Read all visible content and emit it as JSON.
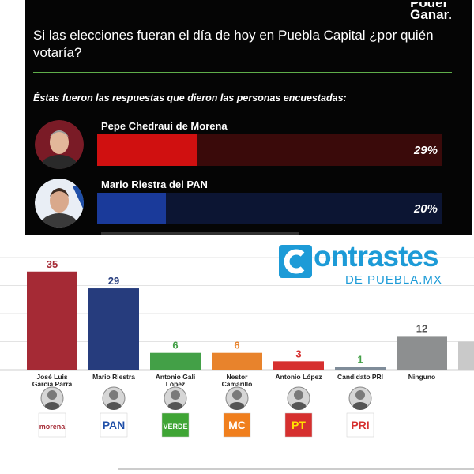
{
  "top": {
    "brand_line1": "Poder",
    "brand_line2": "Ganar.",
    "question": "Si las elecciones fueran el día de hoy en Puebla Capital ¿por quién votaría?",
    "subtitle": "Éstas fueron las respuestas que dieron las personas encuestadas:",
    "candidates": [
      {
        "name": "Pepe Chedraui de Morena",
        "percent_label": "29%",
        "percent": 29,
        "color": "#d01010",
        "track": "#3a0a0a"
      },
      {
        "name": "Mario Riestra del PAN",
        "percent_label": "20%",
        "percent": 20,
        "color": "#1a3a9a",
        "track": "#0c1533"
      }
    ]
  },
  "logo": {
    "title": "ontrastes",
    "initial": "C",
    "subtitle": "DE PUEBLA.MX",
    "color": "#1d9bd7"
  },
  "chart_data": {
    "type": "bar",
    "categories": [
      "José Luis García Parra",
      "Mario Riestra",
      "Antonio Gali López",
      "Nestor Camarillo",
      "Antonio López",
      "Candidato PRI",
      "Ninguno",
      ""
    ],
    "values": [
      35,
      29,
      6,
      6,
      3,
      1,
      12,
      10
    ],
    "value_labels": [
      "35",
      "29",
      "6",
      "6",
      "3",
      "1",
      "12",
      ""
    ],
    "colors": [
      "#a52a35",
      "#263c7d",
      "#43a047",
      "#e8832c",
      "#d6302f",
      "#7f8c99",
      "#8d8f90",
      "#c9c9c9"
    ],
    "label_colors": [
      "#a52a35",
      "#263c7d",
      "#43a047",
      "#e8832c",
      "#d6302f",
      "#43a047",
      "#555555",
      "#555555"
    ],
    "parties": [
      "morena",
      "PAN",
      "VERDE",
      "MC",
      "PT",
      "PRI",
      "",
      ""
    ],
    "ylim": [
      0,
      40
    ],
    "grid": true
  }
}
